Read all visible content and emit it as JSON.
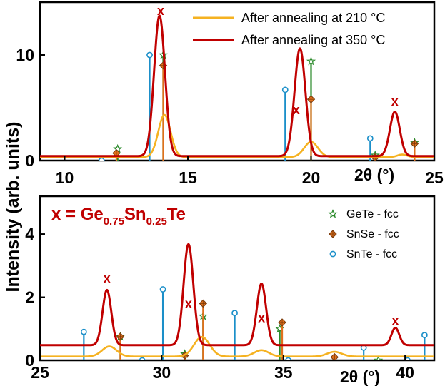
{
  "chart_data": [
    {
      "type": "line",
      "panel": "top",
      "xlim": [
        9,
        25
      ],
      "ylim": [
        0,
        15
      ],
      "xticks": [
        10,
        15,
        20,
        25
      ],
      "yticks": [
        0,
        10
      ],
      "xlabel": "2θ (°)",
      "legend_placement": "top-right",
      "series": [
        {
          "name": "After annealing at 210 °C",
          "color": "#f5b221",
          "baseline": 0.32,
          "peaks": [
            [
              14.05,
              4.0,
              0.25
            ],
            [
              20.0,
              1.45,
              0.28
            ],
            [
              23.7,
              0.25,
              0.2
            ]
          ]
        },
        {
          "name": "After annealing at 350 °C",
          "color": "#c00000",
          "baseline": 0.42,
          "peaks": [
            [
              13.85,
              13.3,
              0.22
            ],
            [
              19.55,
              10.2,
              0.22
            ],
            [
              23.4,
              4.2,
              0.2
            ]
          ]
        }
      ],
      "references": [
        {
          "name": "GeTe - fcc",
          "marker": "star",
          "color": "#2a8a2a",
          "lines": [
            [
              12.15,
              1.1
            ],
            [
              14.0,
              10.0
            ],
            [
              20.0,
              9.4
            ],
            [
              22.6,
              0.5
            ],
            [
              24.2,
              1.7
            ]
          ]
        },
        {
          "name": "SnSe - fcc",
          "marker": "diamond",
          "color": "#e0701c",
          "lines": [
            [
              12.1,
              0.7
            ],
            [
              14.0,
              9.0
            ],
            [
              20.0,
              5.8
            ],
            [
              22.6,
              0.3
            ],
            [
              24.2,
              1.6
            ]
          ]
        },
        {
          "name": "SnTe - fcc",
          "marker": "circle",
          "color": "#1b8fc9",
          "lines": [
            [
              11.5,
              0.0
            ],
            [
              13.45,
              10.0
            ],
            [
              18.95,
              6.7
            ],
            [
              22.4,
              2.1
            ]
          ]
        }
      ],
      "phase_markers": [
        {
          "x": 13.9,
          "y": 14.2,
          "label": "x"
        },
        {
          "x": 19.4,
          "y": 4.8,
          "label": "x"
        },
        {
          "x": 23.4,
          "y": 5.6,
          "label": "x"
        }
      ]
    },
    {
      "type": "line",
      "panel": "bottom",
      "xlim": [
        25,
        41.2
      ],
      "ylim": [
        0,
        5.2
      ],
      "xticks": [
        25,
        30,
        35,
        40
      ],
      "yticks": [
        0,
        2,
        4
      ],
      "xlabel": "2θ (°)",
      "annotation": "x = Ge0.75Sn0.25Te",
      "legend_placement": "top-right",
      "series": [
        {
          "name": "After annealing at 210 °C",
          "color": "#f5b221",
          "baseline": 0.12,
          "peaks": [
            [
              27.85,
              0.32,
              0.3
            ],
            [
              31.65,
              0.62,
              0.32
            ],
            [
              34.1,
              0.2,
              0.3
            ],
            [
              37.1,
              0.15,
              0.3
            ]
          ]
        },
        {
          "name": "After annealing at 350 °C",
          "color": "#c00000",
          "baseline": 0.48,
          "peaks": [
            [
              27.75,
              1.75,
              0.18
            ],
            [
              31.1,
              3.2,
              0.2
            ],
            [
              34.1,
              1.95,
              0.19
            ],
            [
              39.6,
              0.55,
              0.16
            ]
          ]
        }
      ],
      "references": [
        {
          "name": "GeTe - fcc",
          "marker": "star",
          "color": "#2a8a2a",
          "lines": [
            [
              28.3,
              0.75
            ],
            [
              30.95,
              0.2
            ],
            [
              31.7,
              1.4
            ],
            [
              34.85,
              1.0
            ],
            [
              38.9,
              0.0
            ]
          ]
        },
        {
          "name": "SnSe - fcc",
          "marker": "diamond",
          "color": "#e0701c",
          "lines": [
            [
              28.3,
              0.75
            ],
            [
              30.95,
              0.15
            ],
            [
              31.7,
              1.8
            ],
            [
              34.95,
              1.2
            ],
            [
              37.1,
              0.1
            ]
          ]
        },
        {
          "name": "SnTe - fcc",
          "marker": "circle",
          "color": "#1b8fc9",
          "lines": [
            [
              26.8,
              0.9
            ],
            [
              29.2,
              0.0
            ],
            [
              30.05,
              2.25
            ],
            [
              33.0,
              1.5
            ],
            [
              35.2,
              0.0
            ],
            [
              38.3,
              0.4
            ],
            [
              40.1,
              0.0
            ],
            [
              40.8,
              0.8
            ]
          ]
        }
      ],
      "phase_markers": [
        {
          "x": 27.75,
          "y": 2.6,
          "label": "x"
        },
        {
          "x": 31.1,
          "y": 1.8,
          "label": "x"
        },
        {
          "x": 34.1,
          "y": 1.35,
          "label": "x"
        },
        {
          "x": 39.6,
          "y": 1.25,
          "label": "x"
        }
      ]
    }
  ],
  "ylabel": "Intensity (arb. units)",
  "formula": {
    "lhs": "x = Ge",
    "sub1": "0.75",
    "mid": "Sn",
    "sub2": "0.25",
    "rhs": "Te"
  }
}
